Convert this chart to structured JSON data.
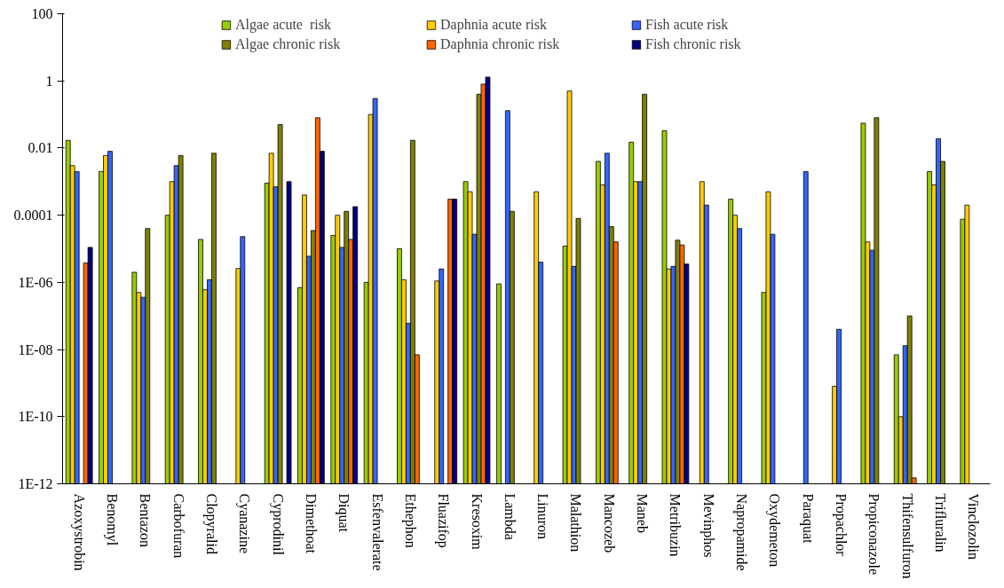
{
  "chart_data": {
    "type": "bar",
    "log": "y",
    "ylim": [
      1e-12,
      100
    ],
    "yticks": [
      {
        "value": 1e-12,
        "label": "1E-12"
      },
      {
        "value": 1e-10,
        "label": "1E-10"
      },
      {
        "value": 1e-08,
        "label": "1E-08"
      },
      {
        "value": 1e-06,
        "label": "1E-06"
      },
      {
        "value": 0.0001,
        "label": "0.0001"
      },
      0.01,
      1,
      100
    ],
    "grid": false,
    "legend": "top",
    "categories": [
      "Azoxystrobin",
      "Benomyl",
      "Bentazon",
      "Carbofuran",
      "Clopyralid",
      "Cyanazine",
      "Cyprodinil",
      "Dimethoat",
      "Diquat",
      "Esfenvalerate",
      "Ethephon",
      "Fluazifop",
      "Kresoxim",
      "Lambda",
      "Linuron",
      "Malathion",
      "Mancozeb",
      "Maneb",
      "Metribuzin",
      "Mevinphos",
      "Napropamide",
      "Oxydemeton",
      "Paraquat",
      "Propachlor",
      "Propiconazole",
      "Thifensulfuron",
      "Trifluralin",
      "Vinclozolin"
    ],
    "series": [
      {
        "name": "Algae acute  risk",
        "color": "#99cc00",
        "values": [
          0.017,
          0.002,
          2e-06,
          0.0001,
          1.9e-05,
          null,
          0.0009,
          7e-07,
          2.5e-05,
          1e-06,
          1e-05,
          null,
          0.001,
          9e-07,
          null,
          1.2e-05,
          0.004,
          0.015,
          0.033,
          null,
          0.0003,
          5e-07,
          null,
          null,
          0.055,
          7e-09,
          0.002,
          7.6e-05
        ]
      },
      {
        "name": "Daphnia acute risk",
        "color": "#ffcc00",
        "values": [
          0.003,
          0.006,
          5e-07,
          0.001,
          6e-07,
          2.6e-06,
          0.007,
          0.0004,
          0.0001,
          0.1,
          1.2e-06,
          1.1e-06,
          0.0005,
          null,
          0.0005,
          0.5,
          0.0008,
          0.001,
          2.5e-06,
          0.001,
          0.0001,
          0.0005,
          null,
          8e-10,
          1.6e-05,
          1e-10,
          0.0008,
          0.0002
        ]
      },
      {
        "name": "Fish acute risk",
        "color": "#3366ff",
        "values": [
          0.002,
          0.008,
          3.6e-07,
          0.003,
          1.2e-06,
          2.3e-05,
          0.0007,
          6e-06,
          1.1e-05,
          0.3,
          6e-08,
          2.5e-06,
          2.7e-05,
          0.13,
          4e-06,
          3e-06,
          0.007,
          0.001,
          3e-06,
          0.0002,
          4e-05,
          2.7e-05,
          0.002,
          4e-08,
          9e-06,
          1.3e-08,
          0.019,
          null
        ]
      },
      {
        "name": "Algae chronic risk",
        "color": "#808000",
        "values": [
          null,
          null,
          4e-05,
          0.006,
          0.007,
          null,
          0.05,
          3.5e-05,
          0.00013,
          null,
          0.017,
          null,
          0.4,
          0.00013,
          null,
          8e-05,
          4.6e-05,
          0.4,
          1.8e-05,
          null,
          null,
          null,
          null,
          null,
          0.08,
          1e-07,
          0.004,
          null
        ]
      },
      {
        "name": "Daphnia chronic risk",
        "color": "#ff6600",
        "values": [
          3.8e-06,
          null,
          null,
          null,
          null,
          null,
          null,
          0.08,
          1.9e-05,
          null,
          7e-09,
          0.0003,
          0.8,
          null,
          null,
          null,
          1.6e-05,
          null,
          1.3e-05,
          null,
          null,
          null,
          null,
          null,
          null,
          1.5e-12,
          null,
          null
        ]
      },
      {
        "name": "Fish chronic risk",
        "color": "#000080",
        "values": [
          1.1e-05,
          null,
          null,
          null,
          null,
          null,
          0.001,
          0.008,
          0.00018,
          null,
          null,
          0.0003,
          1.3,
          null,
          null,
          null,
          null,
          null,
          3.5e-06,
          null,
          null,
          null,
          null,
          null,
          null,
          null,
          null,
          null
        ]
      }
    ]
  }
}
